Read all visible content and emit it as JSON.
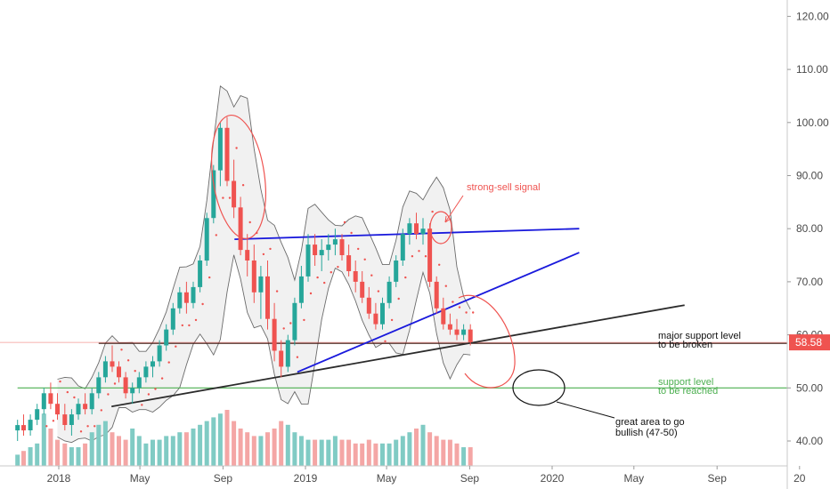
{
  "chart_data": {
    "type": "candlestick",
    "y_axis": {
      "position": "right",
      "ticks": [
        "40.00",
        "50.00",
        "60.00",
        "70.00",
        "80.00",
        "90.00",
        "100.00",
        "110.00",
        "120.00"
      ],
      "range": [
        33.5,
        127
      ]
    },
    "x_axis": {
      "ticks": [
        "2018",
        "May",
        "Sep",
        "2019",
        "May",
        "Sep",
        "2020",
        "May",
        "Sep",
        "20"
      ]
    },
    "last_price": {
      "value": 58.58,
      "label": "58.58",
      "color": "#ef5350"
    },
    "horizontal_levels": [
      {
        "value": 58.4,
        "color": "#3b1b14",
        "from": "2018-03"
      },
      {
        "value": 50.0,
        "color": "#4caf50",
        "from": "2017-11"
      }
    ],
    "trendlines": [
      {
        "name": "resistance",
        "color": "#1a1adc",
        "from": [
          "2018-09-18",
          78
        ],
        "to": [
          "2020-02-10",
          80
        ]
      },
      {
        "name": "rising support",
        "color": "#1a1adc",
        "from": [
          "2018-12-20",
          53
        ],
        "to": [
          "2020-02-10",
          75.5
        ]
      },
      {
        "name": "long-term support",
        "color": "#2b2b2b",
        "from": [
          "2018-03-20",
          46.5
        ],
        "to": [
          "2020-07-15",
          65.6
        ]
      }
    ],
    "annotations": [
      {
        "text": "strong-sell signal",
        "color": "#ef5350"
      },
      {
        "text": "major support level",
        "color": "#111111"
      },
      {
        "text": "to be broken",
        "color": "#111111"
      },
      {
        "text": "support level",
        "color": "#4caf50"
      },
      {
        "text": "to be reached",
        "color": "#4caf50"
      },
      {
        "text": "great area to go",
        "color": "#111111"
      },
      {
        "text": "bullish (47-50)",
        "color": "#111111"
      }
    ],
    "colors": {
      "up": "#26a69a",
      "down": "#ef5350",
      "volume_up": "#80cbc4",
      "volume_down": "#f4a6a5",
      "bands": "#6b6b6b",
      "band_fill": "#e6e6e6"
    },
    "candles": [
      [
        "2017-11-01",
        42,
        44,
        40,
        43
      ],
      [
        "2017-11-10",
        43,
        45,
        41,
        42
      ],
      [
        "2017-11-20",
        42,
        45,
        41,
        44
      ],
      [
        "2017-11-30",
        44,
        47,
        43,
        46
      ],
      [
        "2017-12-10",
        46,
        50,
        45,
        49
      ],
      [
        "2017-12-20",
        49,
        51,
        46,
        47
      ],
      [
        "2017-12-30",
        47,
        49,
        44,
        45
      ],
      [
        "2018-01-10",
        45,
        47,
        42,
        43
      ],
      [
        "2018-01-20",
        43,
        46,
        41,
        45
      ],
      [
        "2018-01-30",
        45,
        48,
        44,
        47
      ],
      [
        "2018-02-09",
        47,
        49,
        45,
        46
      ],
      [
        "2018-02-19",
        46,
        50,
        45,
        49
      ],
      [
        "2018-03-01",
        49,
        53,
        48,
        52
      ],
      [
        "2018-03-11",
        52,
        56,
        51,
        55
      ],
      [
        "2018-03-21",
        55,
        58,
        53,
        54
      ],
      [
        "2018-03-31",
        54,
        55,
        51,
        52
      ],
      [
        "2018-04-10",
        52,
        53,
        48,
        49
      ],
      [
        "2018-04-20",
        49,
        51,
        47,
        50
      ],
      [
        "2018-04-30",
        50,
        53,
        49,
        52
      ],
      [
        "2018-05-10",
        52,
        55,
        51,
        54
      ],
      [
        "2018-05-20",
        54,
        56,
        52,
        55
      ],
      [
        "2018-05-30",
        55,
        59,
        54,
        58
      ],
      [
        "2018-06-09",
        58,
        62,
        57,
        61
      ],
      [
        "2018-06-19",
        61,
        66,
        60,
        65
      ],
      [
        "2018-06-29",
        65,
        69,
        64,
        68
      ],
      [
        "2018-07-09",
        68,
        70,
        64,
        66
      ],
      [
        "2018-07-19",
        66,
        70,
        65,
        69
      ],
      [
        "2018-07-29",
        69,
        75,
        68,
        74
      ],
      [
        "2018-08-08",
        74,
        83,
        73,
        82
      ],
      [
        "2018-08-18",
        82,
        92,
        81,
        91
      ],
      [
        "2018-08-28",
        91,
        100,
        88,
        99
      ],
      [
        "2018-09-07",
        99,
        101,
        88,
        89
      ],
      [
        "2018-09-17",
        89,
        93,
        82,
        84
      ],
      [
        "2018-09-27",
        84,
        86,
        75,
        76
      ],
      [
        "2018-10-07",
        76,
        79,
        71,
        74
      ],
      [
        "2018-10-17",
        74,
        77,
        66,
        68
      ],
      [
        "2018-10-27",
        68,
        73,
        63,
        71
      ],
      [
        "2018-11-06",
        71,
        74,
        61,
        63
      ],
      [
        "2018-11-16",
        63,
        66,
        55,
        57
      ],
      [
        "2018-11-26",
        57,
        59,
        52,
        54
      ],
      [
        "2018-12-06",
        54,
        60,
        53,
        59
      ],
      [
        "2018-12-16",
        59,
        67,
        58,
        66
      ],
      [
        "2018-12-26",
        66,
        73,
        65,
        71
      ],
      [
        "2019-01-05",
        71,
        79,
        70,
        77
      ],
      [
        "2019-01-15",
        77,
        79,
        73,
        75
      ],
      [
        "2019-01-25",
        75,
        78,
        72,
        76
      ],
      [
        "2019-02-04",
        76,
        79,
        74,
        77
      ],
      [
        "2019-02-14",
        77,
        80,
        75,
        78
      ],
      [
        "2019-02-24",
        78,
        79,
        74,
        75
      ],
      [
        "2019-03-06",
        75,
        77,
        71,
        72
      ],
      [
        "2019-03-16",
        72,
        74,
        68,
        70
      ],
      [
        "2019-03-26",
        70,
        72,
        66,
        67
      ],
      [
        "2019-04-05",
        67,
        69,
        63,
        64
      ],
      [
        "2019-04-15",
        64,
        66,
        61,
        62
      ],
      [
        "2019-04-25",
        62,
        67,
        61,
        66
      ],
      [
        "2019-05-05",
        66,
        71,
        65,
        70
      ],
      [
        "2019-05-15",
        70,
        75,
        69,
        74
      ],
      [
        "2019-05-25",
        74,
        80,
        73,
        79
      ],
      [
        "2019-06-04",
        79,
        82,
        77,
        81
      ],
      [
        "2019-06-14",
        81,
        83,
        78,
        79
      ],
      [
        "2019-06-24",
        79,
        82,
        77,
        80
      ],
      [
        "2019-07-04",
        80,
        81,
        69,
        70
      ],
      [
        "2019-07-14",
        70,
        71,
        64,
        65
      ],
      [
        "2019-07-24",
        65,
        67,
        61,
        62
      ],
      [
        "2019-08-03",
        62,
        64,
        60,
        61
      ],
      [
        "2019-08-13",
        61,
        63,
        59,
        60
      ],
      [
        "2019-08-23",
        60,
        62,
        59,
        61
      ],
      [
        "2019-09-02",
        61,
        62,
        58,
        58.6
      ]
    ],
    "volume": [
      3,
      4,
      5,
      6,
      14,
      10,
      7,
      6,
      5,
      5,
      6,
      9,
      11,
      12,
      9,
      8,
      7,
      10,
      8,
      6,
      7,
      7,
      8,
      8,
      9,
      9,
      10,
      11,
      12,
      13,
      14,
      15,
      12,
      10,
      9,
      8,
      8,
      9,
      10,
      12,
      11,
      9,
      8,
      7,
      7,
      7,
      7,
      8,
      7,
      7,
      6,
      6,
      7,
      6,
      6,
      6,
      7,
      8,
      9,
      10,
      11,
      9,
      8,
      7,
      7,
      6,
      5,
      5
    ]
  }
}
